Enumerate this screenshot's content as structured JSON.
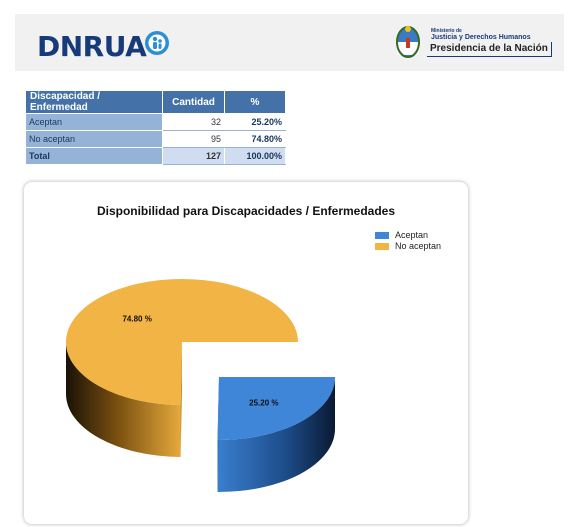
{
  "header": {
    "logo_text": "DNRUA",
    "ministry_line1": "Ministerio de",
    "ministry_line2": "Justicia y Derechos Humanos",
    "ministry_line3": "Presidencia de la Nación"
  },
  "table": {
    "headers": [
      "Discapacidad / Enfermedad",
      "Cantidad",
      "%"
    ],
    "rows": [
      {
        "label": "Aceptan",
        "cantidad": "32",
        "pct": "25.20%"
      },
      {
        "label": "No aceptan",
        "cantidad": "95",
        "pct": "74.80%"
      }
    ],
    "total": {
      "label": "Total",
      "cantidad": "127",
      "pct": "100.00%"
    }
  },
  "colors": {
    "aceptan": "#3f86d8",
    "no_aceptan": "#f2b445",
    "header_blue": "#4472a8",
    "logo_blue": "#173b78"
  },
  "chart_data": {
    "type": "pie",
    "title": "Disponibilidad para Discapacidades / Enfermedades",
    "categories": [
      "Aceptan",
      "No aceptan"
    ],
    "values": [
      25.2,
      74.8
    ],
    "counts": [
      32,
      95
    ],
    "data_labels": [
      "25.20 %",
      "74.80 %"
    ],
    "legend_position": "top-right",
    "exploded": "Aceptan",
    "three_d": true
  }
}
